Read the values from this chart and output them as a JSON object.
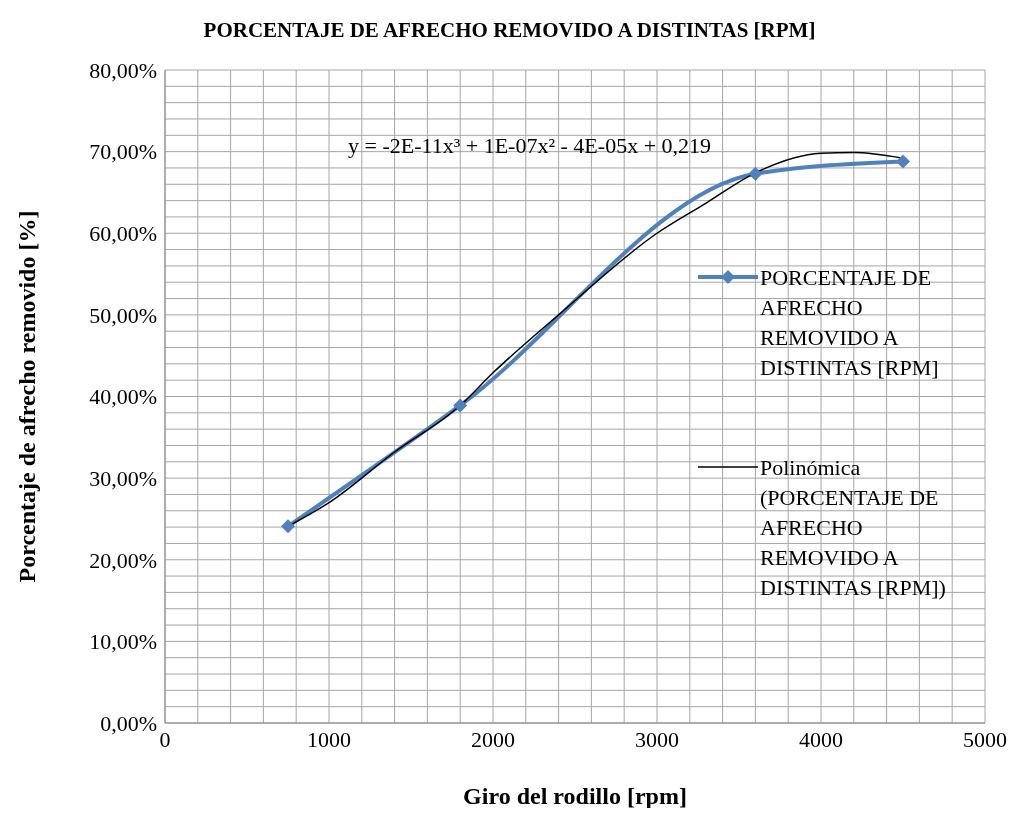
{
  "chart_data": {
    "type": "line",
    "title": "PORCENTAJE DE AFRECHO REMOVIDO A DISTINTAS [RPM]",
    "xlabel": "Giro del rodillo [rpm]",
    "ylabel": "Porcentaje de afrecho removido [%]",
    "annotations": [
      "y = -2E-11x³ + 1E-07x² - 4E-05x + 0,219"
    ],
    "series": [
      {
        "name": "PORCENTAJE DE AFRECHO REMOVIDO A DISTINTAS [RPM]",
        "color": "#4f81bd",
        "marker": "diamond",
        "x": [
          750,
          1800,
          3600,
          4500
        ],
        "values": [
          24.1,
          38.9,
          67.3,
          68.8
        ]
      },
      {
        "type": "line",
        "name": "Polinómica (PORCENTAJE DE AFRECHO REMOVIDO A DISTINTAS [RPM])",
        "color": "#000000",
        "marker": "none",
        "x": [
          750,
          1000,
          1400,
          1800,
          2000,
          2400,
          3000,
          3300,
          3600,
          4000,
          4200,
          4500
        ],
        "values": [
          24.1,
          27.0,
          33.2,
          38.9,
          42.9,
          50.0,
          60.0,
          63.7,
          67.4,
          69.8,
          69.9,
          69.2
        ]
      }
    ],
    "xlim": [
      0,
      5000
    ],
    "xticks": [
      0,
      {
        "value": 200,
        "label": null
      },
      {
        "value": 400,
        "label": null
      },
      {
        "value": 600,
        "label": null
      },
      {
        "value": 800,
        "label": null
      },
      1000,
      {
        "value": 1200,
        "label": null
      },
      {
        "value": 1400,
        "label": null
      },
      {
        "value": 1600,
        "label": null
      },
      {
        "value": 1800,
        "label": null
      },
      2000,
      {
        "value": 2200,
        "label": null
      },
      {
        "value": 2400,
        "label": null
      },
      {
        "value": 2600,
        "label": null
      },
      {
        "value": 2800,
        "label": null
      },
      3000,
      {
        "value": 3200,
        "label": null
      },
      {
        "value": 3400,
        "label": null
      },
      {
        "value": 3600,
        "label": null
      },
      {
        "value": 3800,
        "label": null
      },
      4000,
      {
        "value": 4200,
        "label": null
      },
      {
        "value": 4400,
        "label": null
      },
      {
        "value": 4600,
        "label": null
      },
      {
        "value": 4800,
        "label": null
      },
      5000
    ],
    "ylim": [
      0,
      80
    ],
    "yticks": [
      {
        "value": 0,
        "label": "0,00%"
      },
      {
        "value": 2,
        "label": null
      },
      {
        "value": 4,
        "label": null
      },
      {
        "value": 6,
        "label": null
      },
      {
        "value": 8,
        "label": null
      },
      {
        "value": 10,
        "label": "10,00%"
      },
      {
        "value": 12,
        "label": null
      },
      {
        "value": 14,
        "label": null
      },
      {
        "value": 16,
        "label": null
      },
      {
        "value": 18,
        "label": null
      },
      {
        "value": 20,
        "label": "20,00%"
      },
      {
        "value": 22,
        "label": null
      },
      {
        "value": 24,
        "label": null
      },
      {
        "value": 26,
        "label": null
      },
      {
        "value": 28,
        "label": null
      },
      {
        "value": 30,
        "label": "30,00%"
      },
      {
        "value": 32,
        "label": null
      },
      {
        "value": 34,
        "label": null
      },
      {
        "value": 36,
        "label": null
      },
      {
        "value": 38,
        "label": null
      },
      {
        "value": 40,
        "label": "40,00%"
      },
      {
        "value": 42,
        "label": null
      },
      {
        "value": 44,
        "label": null
      },
      {
        "value": 46,
        "label": null
      },
      {
        "value": 48,
        "label": null
      },
      {
        "value": 50,
        "label": "50,00%"
      },
      {
        "value": 52,
        "label": null
      },
      {
        "value": 54,
        "label": null
      },
      {
        "value": 56,
        "label": null
      },
      {
        "value": 58,
        "label": null
      },
      {
        "value": 60,
        "label": "60,00%"
      },
      {
        "value": 62,
        "label": null
      },
      {
        "value": 64,
        "label": null
      },
      {
        "value": 66,
        "label": null
      },
      {
        "value": 68,
        "label": null
      },
      {
        "value": 70,
        "label": "70,00%"
      },
      {
        "value": 72,
        "label": null
      },
      {
        "value": 74,
        "label": null
      },
      {
        "value": 76,
        "label": null
      },
      {
        "value": 78,
        "label": null
      },
      {
        "value": 80,
        "label": "80,00%"
      }
    ],
    "grid": true,
    "legend": "right"
  }
}
